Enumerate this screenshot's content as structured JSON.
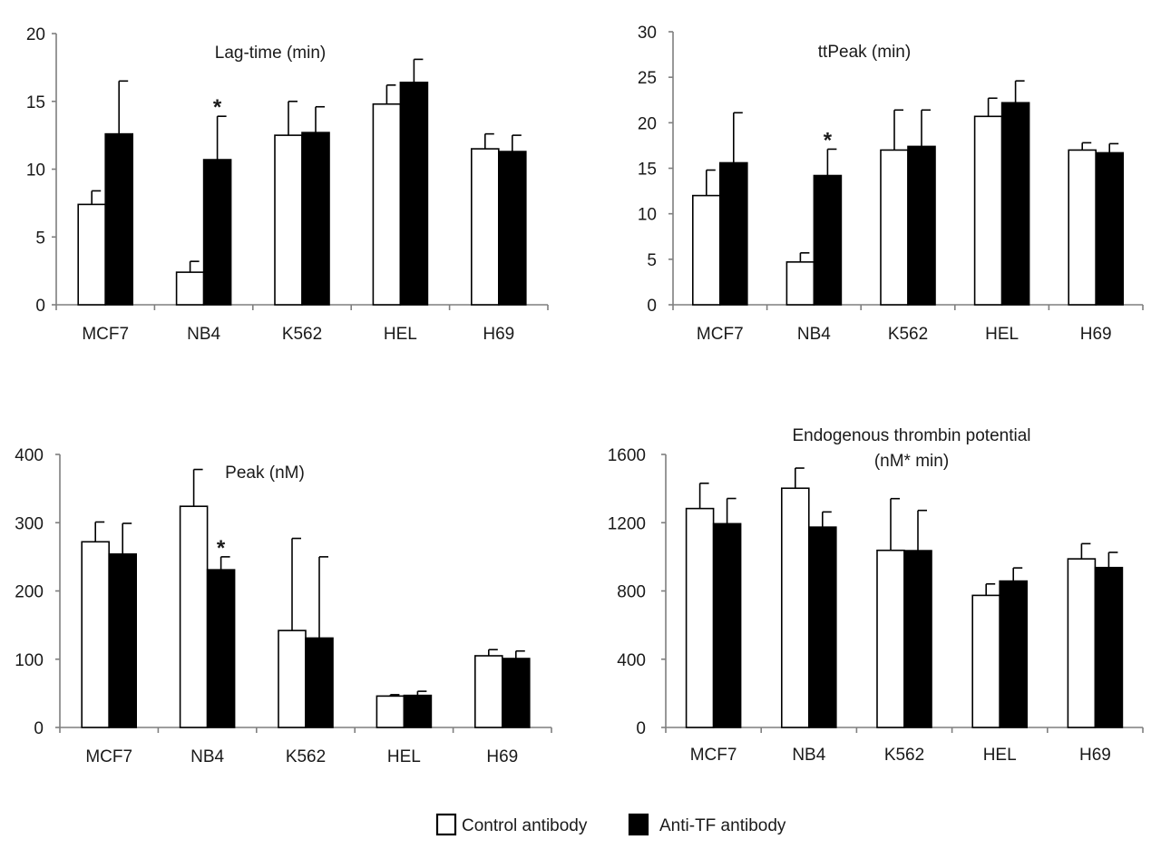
{
  "colors": {
    "control": "#ffffff",
    "anti_tf": "#000000",
    "stroke": "#000000",
    "axis": "#7f7f7f",
    "text": "#1a1a1a"
  },
  "legend": {
    "control_label": "Control antibody",
    "anti_tf_label": "Anti-TF antibody"
  },
  "chart_data": [
    {
      "type": "bar",
      "title_lines": [
        "Lag-time (min)"
      ],
      "categories": [
        "MCF7",
        "NB4",
        "K562",
        "HEL",
        "H69"
      ],
      "ylim": [
        0,
        20
      ],
      "yticks": [
        0,
        5,
        10,
        15,
        20
      ],
      "series": [
        {
          "name": "Control antibody",
          "values": [
            7.4,
            2.4,
            12.5,
            14.8,
            11.5
          ],
          "errors": [
            1.0,
            0.8,
            2.5,
            1.4,
            1.1
          ]
        },
        {
          "name": "Anti-TF antibody",
          "values": [
            12.6,
            10.7,
            12.7,
            16.4,
            11.3
          ],
          "errors": [
            3.9,
            3.2,
            1.9,
            1.7,
            1.2
          ]
        }
      ],
      "annotations": [
        {
          "category": "NB4",
          "series": 1,
          "text": "*"
        }
      ]
    },
    {
      "type": "bar",
      "title_lines": [
        "ttPeak (min)"
      ],
      "categories": [
        "MCF7",
        "NB4",
        "K562",
        "HEL",
        "H69"
      ],
      "ylim": [
        0,
        30
      ],
      "yticks": [
        0,
        5,
        10,
        15,
        20,
        25,
        30
      ],
      "series": [
        {
          "name": "Control antibody",
          "values": [
            12.0,
            4.7,
            17.0,
            20.7,
            17.0
          ],
          "errors": [
            2.8,
            1.0,
            4.4,
            2.0,
            0.8
          ]
        },
        {
          "name": "Anti-TF antibody",
          "values": [
            15.6,
            14.2,
            17.4,
            22.2,
            16.7
          ],
          "errors": [
            5.5,
            2.9,
            4.0,
            2.4,
            1.0
          ]
        }
      ],
      "annotations": [
        {
          "category": "NB4",
          "series": 1,
          "text": "*"
        }
      ]
    },
    {
      "type": "bar",
      "title_lines": [
        "Peak (nM)"
      ],
      "categories": [
        "MCF7",
        "NB4",
        "K562",
        "HEL",
        "H69"
      ],
      "ylim": [
        0,
        400
      ],
      "yticks": [
        0,
        100,
        200,
        300,
        400
      ],
      "series": [
        {
          "name": "Control antibody",
          "values": [
            272,
            324,
            142,
            46,
            105
          ],
          "errors": [
            29,
            54,
            135,
            2,
            9
          ]
        },
        {
          "name": "Anti-TF antibody",
          "values": [
            254,
            231,
            131,
            47,
            101
          ],
          "errors": [
            45,
            19,
            119,
            6,
            11
          ]
        }
      ],
      "annotations": [
        {
          "category": "NB4",
          "series": 1,
          "text": "*"
        }
      ]
    },
    {
      "type": "bar",
      "title_lines": [
        "Endogenous thrombin potential",
        "(nM* min)"
      ],
      "categories": [
        "MCF7",
        "NB4",
        "K562",
        "HEL",
        "H69"
      ],
      "ylim": [
        0,
        1600
      ],
      "yticks": [
        0,
        400,
        800,
        1200,
        1600
      ],
      "series": [
        {
          "name": "Control antibody",
          "values": [
            1283,
            1402,
            1038,
            774,
            988
          ],
          "errors": [
            148,
            118,
            303,
            67,
            89
          ]
        },
        {
          "name": "Anti-TF antibody",
          "values": [
            1194,
            1174,
            1036,
            858,
            937
          ],
          "errors": [
            148,
            89,
            236,
            77,
            89
          ]
        }
      ],
      "annotations": []
    }
  ]
}
